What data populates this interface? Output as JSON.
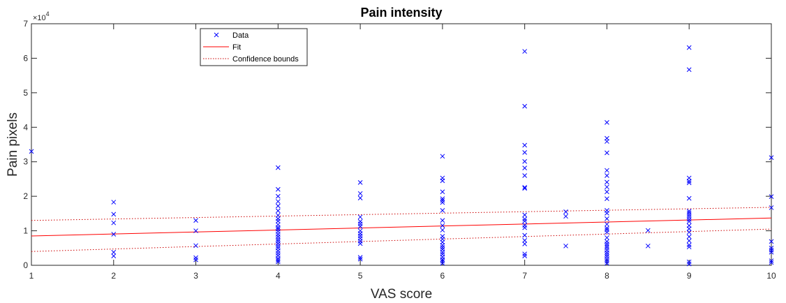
{
  "chart_data": {
    "type": "scatter",
    "title": "Pain intensity",
    "xlabel": "VAS score",
    "ylabel": "Pain pixels",
    "xlim": [
      1,
      10
    ],
    "ylim": [
      0,
      70000
    ],
    "xticks": [
      "1",
      "2",
      "3",
      "4",
      "5",
      "6",
      "7",
      "8",
      "9",
      "10"
    ],
    "yticks": [
      "0",
      "1",
      "2",
      "3",
      "4",
      "5",
      "6",
      "7"
    ],
    "y_exponent_base": "10",
    "y_exponent_power": "4",
    "legend": {
      "position": "top-left",
      "entries": [
        "Data",
        "Fit",
        "Confidence bounds"
      ]
    },
    "colors": {
      "data": "#0000ff",
      "fit": "#ff0000",
      "bounds": "#cc0000",
      "axes": "#262626"
    },
    "series": [
      {
        "name": "Data",
        "style": "markers-x",
        "points": [
          [
            1,
            33000
          ],
          [
            2,
            18300
          ],
          [
            2,
            14800
          ],
          [
            2,
            12300
          ],
          [
            2,
            9000
          ],
          [
            2,
            3800
          ],
          [
            2,
            2700
          ],
          [
            3,
            13000
          ],
          [
            3,
            10000
          ],
          [
            3,
            5700
          ],
          [
            3,
            2200
          ],
          [
            3,
            1600
          ],
          [
            4,
            28300
          ],
          [
            4,
            22000
          ],
          [
            4,
            20000
          ],
          [
            4,
            18500
          ],
          [
            4,
            17200
          ],
          [
            4,
            15800
          ],
          [
            4,
            14500
          ],
          [
            4,
            13500
          ],
          [
            4,
            12800
          ],
          [
            4,
            11800
          ],
          [
            4,
            11000
          ],
          [
            4,
            10500
          ],
          [
            4,
            9800
          ],
          [
            4,
            9000
          ],
          [
            4,
            8300
          ],
          [
            4,
            7600
          ],
          [
            4,
            7000
          ],
          [
            4,
            6300
          ],
          [
            4,
            5600
          ],
          [
            4,
            5000
          ],
          [
            4,
            4200
          ],
          [
            4,
            3500
          ],
          [
            4,
            2800
          ],
          [
            4,
            2000
          ],
          [
            4,
            1500
          ],
          [
            4,
            1000
          ],
          [
            5,
            24000
          ],
          [
            5,
            20800
          ],
          [
            5,
            19500
          ],
          [
            5,
            14000
          ],
          [
            5,
            12700
          ],
          [
            5,
            12000
          ],
          [
            5,
            11300
          ],
          [
            5,
            10000
          ],
          [
            5,
            9200
          ],
          [
            5,
            8500
          ],
          [
            5,
            7800
          ],
          [
            5,
            7000
          ],
          [
            5,
            6300
          ],
          [
            5,
            2300
          ],
          [
            5,
            1800
          ],
          [
            6,
            31600
          ],
          [
            6,
            25300
          ],
          [
            6,
            24500
          ],
          [
            6,
            21300
          ],
          [
            6,
            19300
          ],
          [
            6,
            18800
          ],
          [
            6,
            18200
          ],
          [
            6,
            15900
          ],
          [
            6,
            13000
          ],
          [
            6,
            11500
          ],
          [
            6,
            10200
          ],
          [
            6,
            8400
          ],
          [
            6,
            7600
          ],
          [
            6,
            6700
          ],
          [
            6,
            5800
          ],
          [
            6,
            5200
          ],
          [
            6,
            4600
          ],
          [
            6,
            3800
          ],
          [
            6,
            3200
          ],
          [
            6,
            2400
          ],
          [
            6,
            1700
          ],
          [
            6,
            1200
          ],
          [
            6,
            600
          ],
          [
            7,
            62000
          ],
          [
            7,
            46100
          ],
          [
            7,
            34800
          ],
          [
            7,
            32700
          ],
          [
            7,
            30100
          ],
          [
            7,
            28200
          ],
          [
            7,
            26000
          ],
          [
            7,
            22600
          ],
          [
            7,
            22300
          ],
          [
            7,
            14600
          ],
          [
            7,
            13400
          ],
          [
            7,
            12800
          ],
          [
            7,
            11600
          ],
          [
            7,
            10900
          ],
          [
            7,
            8700
          ],
          [
            7,
            7200
          ],
          [
            7,
            6200
          ],
          [
            7,
            3300
          ],
          [
            7,
            2700
          ],
          [
            7.5,
            15500
          ],
          [
            7.5,
            14200
          ],
          [
            7.5,
            5600
          ],
          [
            8,
            41400
          ],
          [
            8,
            36800
          ],
          [
            8,
            35900
          ],
          [
            8,
            32600
          ],
          [
            8,
            27500
          ],
          [
            8,
            26000
          ],
          [
            8,
            24100
          ],
          [
            8,
            22700
          ],
          [
            8,
            21300
          ],
          [
            8,
            19300
          ],
          [
            8,
            15900
          ],
          [
            8,
            15100
          ],
          [
            8,
            13500
          ],
          [
            8,
            11900
          ],
          [
            8,
            10800
          ],
          [
            8,
            10300
          ],
          [
            8,
            9600
          ],
          [
            8,
            8000
          ],
          [
            8,
            6900
          ],
          [
            8,
            6200
          ],
          [
            8,
            5600
          ],
          [
            8,
            5100
          ],
          [
            8,
            4400
          ],
          [
            8,
            3700
          ],
          [
            8,
            3100
          ],
          [
            8,
            2500
          ],
          [
            8,
            1800
          ],
          [
            8,
            1200
          ],
          [
            8,
            600
          ],
          [
            8.5,
            10100
          ],
          [
            8.5,
            5600
          ],
          [
            9,
            63100
          ],
          [
            9,
            56700
          ],
          [
            9,
            25300
          ],
          [
            9,
            24400
          ],
          [
            9,
            23900
          ],
          [
            9,
            19400
          ],
          [
            9,
            15700
          ],
          [
            9,
            15200
          ],
          [
            9,
            14600
          ],
          [
            9,
            14000
          ],
          [
            9,
            13300
          ],
          [
            9,
            12700
          ],
          [
            9,
            11500
          ],
          [
            9,
            10600
          ],
          [
            9,
            9600
          ],
          [
            9,
            8300
          ],
          [
            9,
            7100
          ],
          [
            9,
            5900
          ],
          [
            9,
            5300
          ],
          [
            9,
            1000
          ],
          [
            9,
            400
          ],
          [
            10,
            31200
          ],
          [
            10,
            19900
          ],
          [
            10,
            16700
          ],
          [
            10,
            6900
          ],
          [
            10,
            5000
          ],
          [
            10,
            4400
          ],
          [
            10,
            3800
          ],
          [
            10,
            1300
          ],
          [
            10,
            800
          ]
        ]
      },
      {
        "name": "Fit",
        "style": "line-solid",
        "points": [
          [
            1,
            8500
          ],
          [
            10,
            13700
          ]
        ]
      },
      {
        "name": "Confidence bounds",
        "style": "line-dotted",
        "upper": [
          [
            1,
            13000
          ],
          [
            10,
            16800
          ]
        ],
        "lower": [
          [
            1,
            4000
          ],
          [
            10,
            10500
          ]
        ]
      }
    ]
  }
}
